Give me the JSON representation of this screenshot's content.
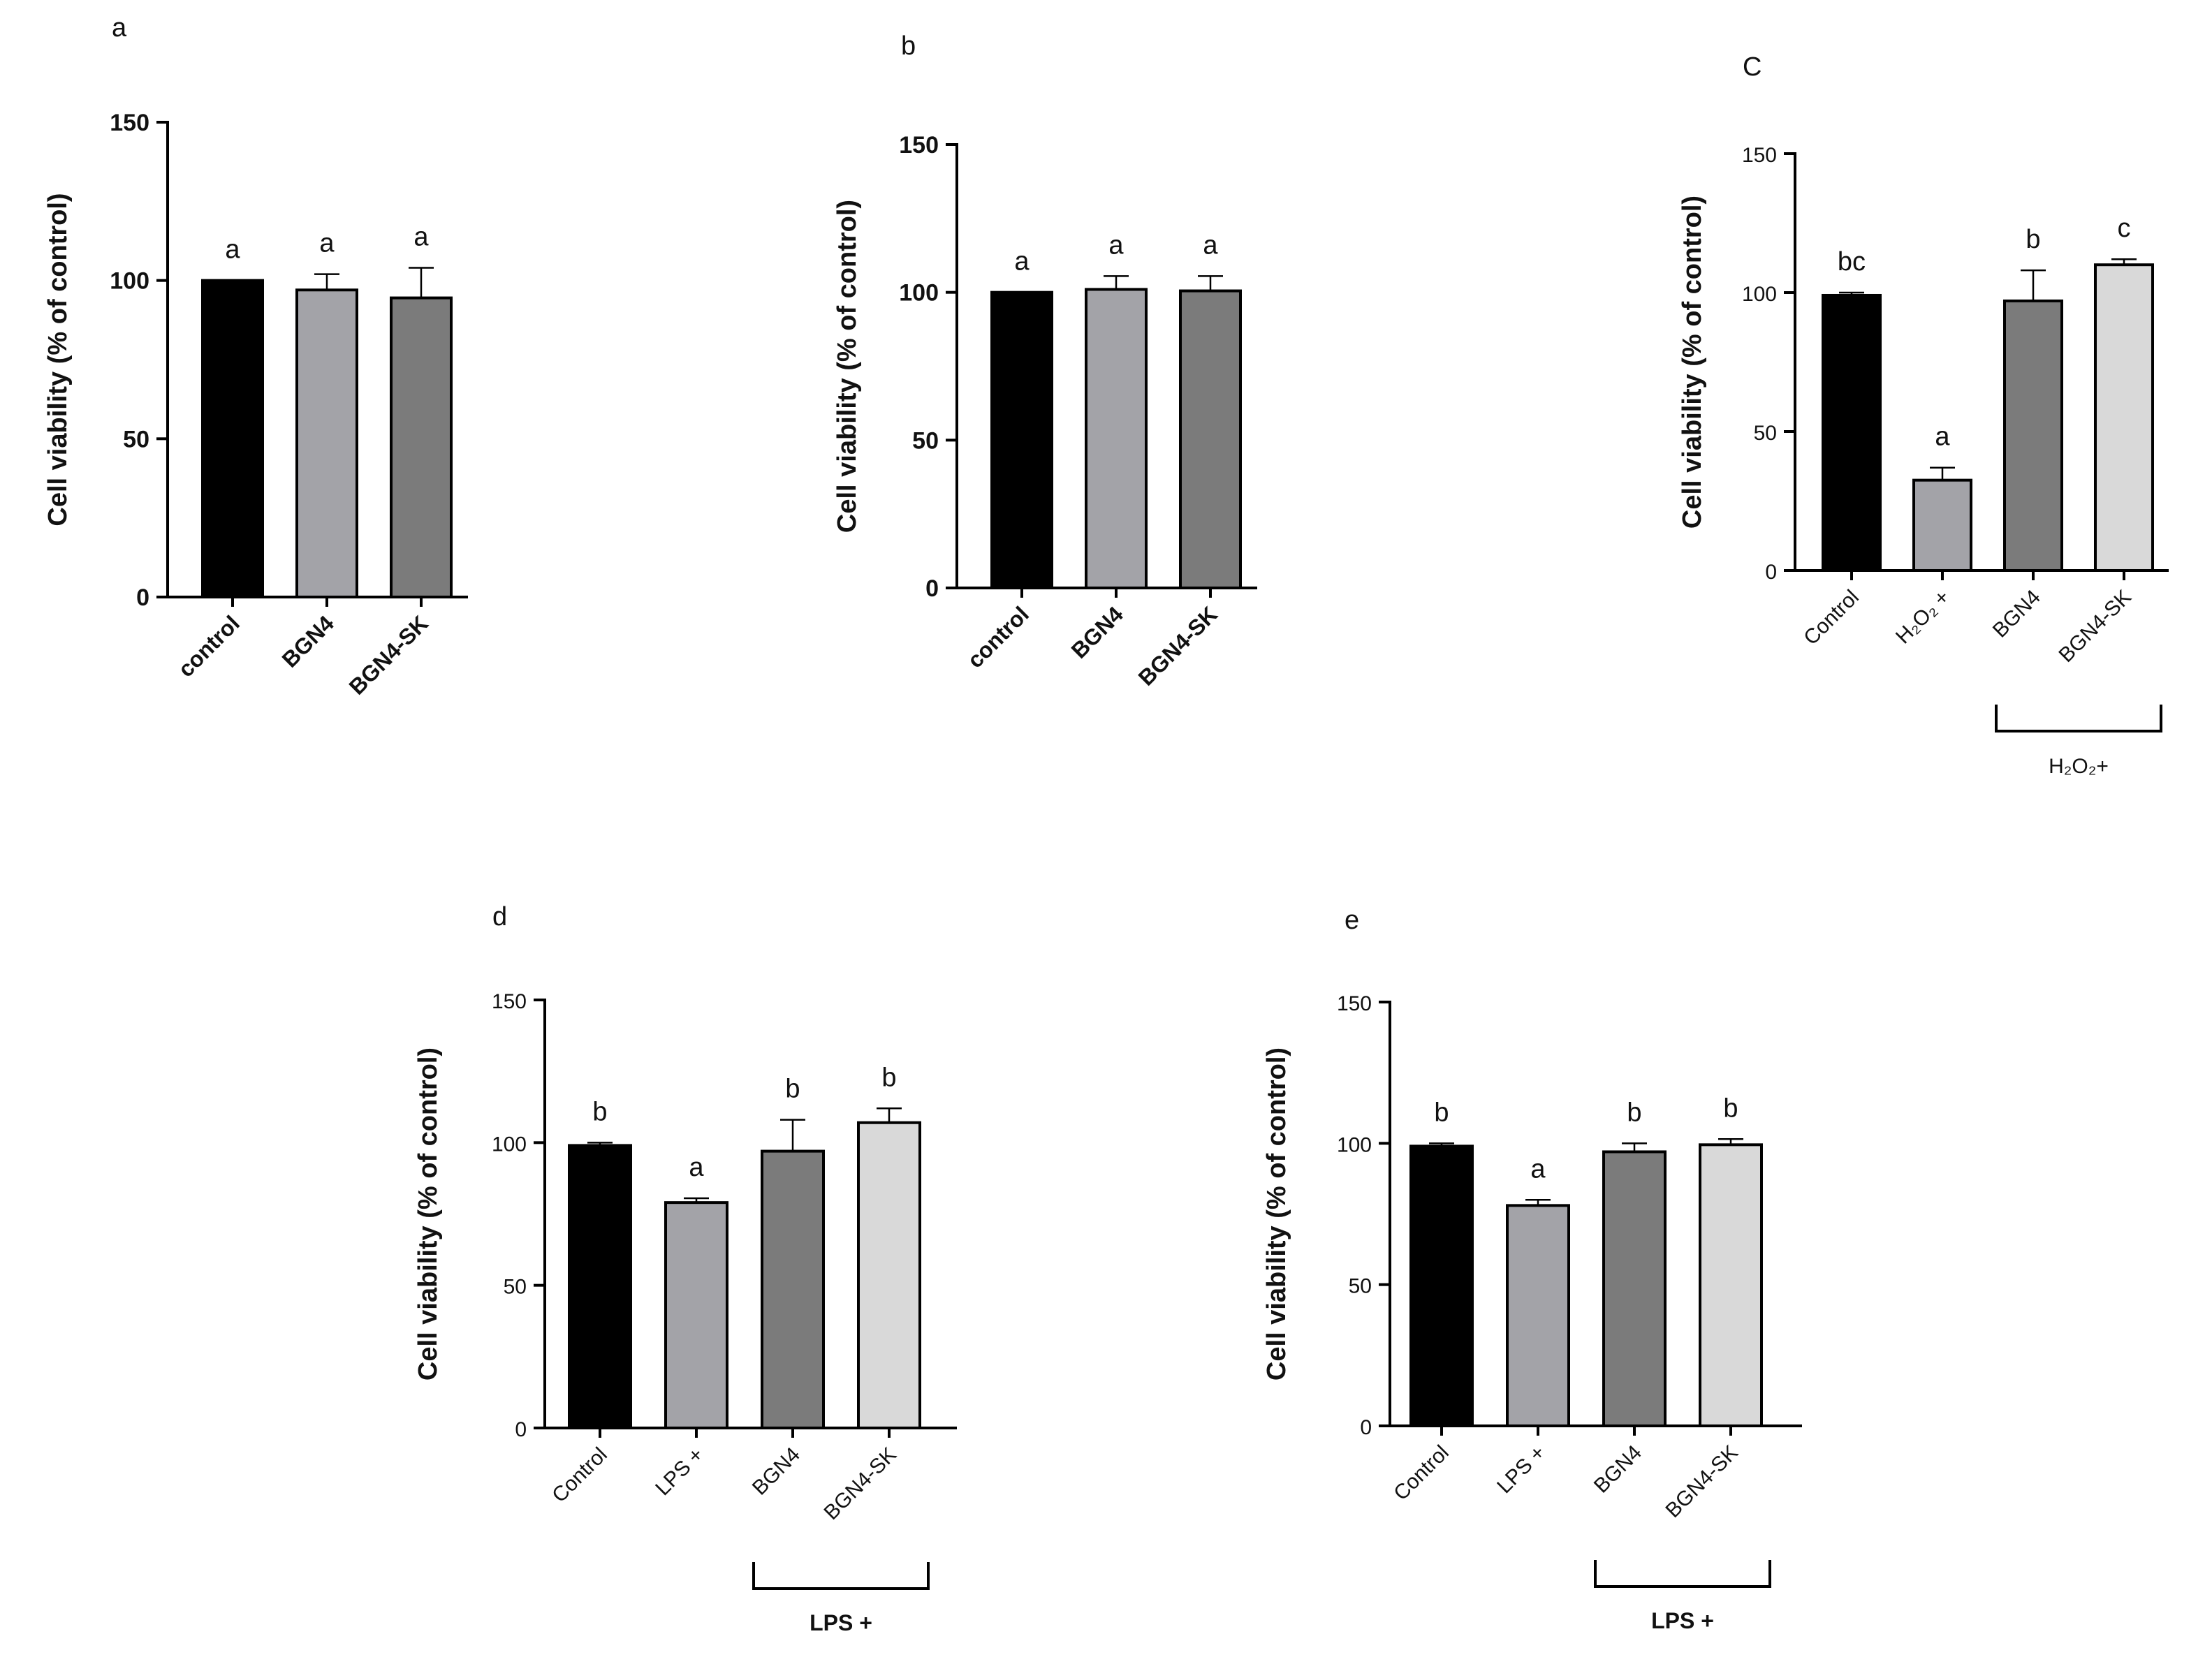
{
  "figure": {
    "y_axis_label": "Cell viability (% of control)",
    "colors": {
      "black": "#000000",
      "light_gray": "#a3a3a8",
      "mid_gray": "#7b7b7b",
      "pale_gray": "#d9d9d9"
    }
  },
  "chart_data": [
    {
      "panel": "a",
      "type": "bar",
      "ylabel": "Cell viability (% of control)",
      "ylim": [
        0,
        150
      ],
      "yticks": [
        0,
        50,
        100,
        150
      ],
      "categories": [
        "control",
        "BGN4",
        "BGN4-SK"
      ],
      "values": [
        100,
        97,
        94.5
      ],
      "errors": [
        0,
        5,
        9.5
      ],
      "significance": [
        "a",
        "a",
        "a"
      ],
      "bracket": null
    },
    {
      "panel": "b",
      "type": "bar",
      "ylabel": "Cell viability (% of control)",
      "ylim": [
        0,
        150
      ],
      "yticks": [
        0,
        50,
        100,
        150
      ],
      "categories": [
        "control",
        "BGN4",
        "BGN4-SK"
      ],
      "values": [
        100,
        101,
        100.5
      ],
      "errors": [
        0,
        4.5,
        5
      ],
      "significance": [
        "a",
        "a",
        "a"
      ],
      "bracket": null
    },
    {
      "panel": "C",
      "type": "bar",
      "ylabel": "Cell viability (% of control)",
      "ylim": [
        0,
        150
      ],
      "yticks": [
        0,
        50,
        100,
        150
      ],
      "categories": [
        "Control",
        "H₂O₂ +",
        "BGN4",
        "BGN4-SK"
      ],
      "values": [
        99,
        32.5,
        97,
        110
      ],
      "errors": [
        1,
        4.5,
        11,
        2
      ],
      "significance": [
        "bc",
        "a",
        "b",
        "c"
      ],
      "bracket": {
        "label": "H₂O₂+",
        "from": 2,
        "to": 3
      }
    },
    {
      "panel": "d",
      "type": "bar",
      "ylabel": "Cell viability (% of control)",
      "ylim": [
        0,
        150
      ],
      "yticks": [
        0,
        50,
        100,
        150
      ],
      "categories": [
        "Control",
        "LPS +",
        "BGN4",
        "BGN4-SK"
      ],
      "values": [
        99,
        79,
        97,
        107
      ],
      "errors": [
        1,
        1.5,
        11,
        5
      ],
      "significance": [
        "b",
        "a",
        "b",
        "b"
      ],
      "bracket": {
        "label": "LPS +",
        "from": 2,
        "to": 3
      }
    },
    {
      "panel": "e",
      "type": "bar",
      "ylabel": "Cell viability (% of control)",
      "ylim": [
        0,
        150
      ],
      "yticks": [
        0,
        50,
        100,
        150
      ],
      "categories": [
        "Control",
        "LPS +",
        "BGN4",
        "BGN4-SK"
      ],
      "values": [
        99,
        78,
        97,
        99.5
      ],
      "errors": [
        1,
        2,
        3,
        2
      ],
      "significance": [
        "b",
        "a",
        "b",
        "b"
      ],
      "bracket": {
        "label": "LPS +",
        "from": 2,
        "to": 3
      }
    }
  ]
}
